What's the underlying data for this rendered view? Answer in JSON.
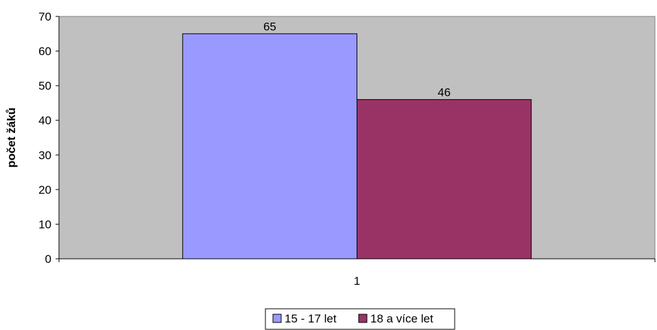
{
  "chart_data": {
    "type": "bar",
    "categories": [
      "1"
    ],
    "series": [
      {
        "name": "15 - 17 let",
        "values": [
          65
        ],
        "color": "#9999FF"
      },
      {
        "name": "18 a více let",
        "values": [
          46
        ],
        "color": "#993366"
      }
    ],
    "title": "",
    "xlabel": "",
    "ylabel": "počet žáků",
    "ylim": [
      0,
      70
    ],
    "yticks": [
      "0",
      "10",
      "20",
      "30",
      "40",
      "50",
      "60",
      "70"
    ],
    "data_labels": [
      "65",
      "46"
    ],
    "legend_position": "bottom",
    "plot_background": "#C0C0C0",
    "grid": false
  }
}
